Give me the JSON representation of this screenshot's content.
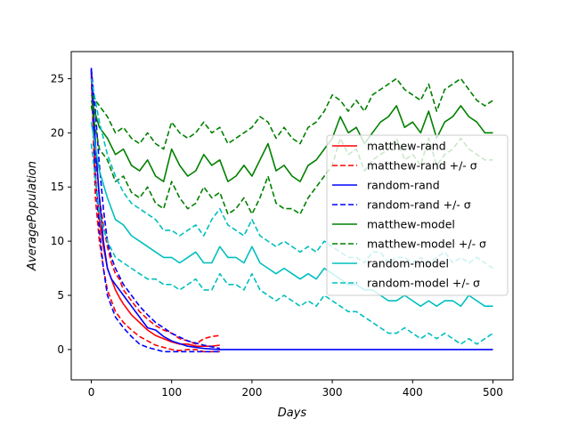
{
  "chart_data": {
    "type": "line",
    "xlabel": "Days",
    "ylabel": "AveragePopulation",
    "xlim": [
      -25,
      525
    ],
    "ylim": [
      -2.8,
      27.5
    ],
    "xticks": [
      0,
      100,
      200,
      300,
      400,
      500
    ],
    "yticks": [
      0,
      5,
      10,
      15,
      20,
      25
    ],
    "grid": false,
    "legend_position": "center-right",
    "series": [
      {
        "name": "matthew-rand",
        "color": "#ff0000",
        "dash": "solid",
        "x": [
          0,
          5,
          10,
          15,
          20,
          25,
          30,
          35,
          40,
          50,
          60,
          70,
          80,
          90,
          100,
          110,
          120,
          130,
          140,
          150,
          160
        ],
        "y": [
          25.5,
          16,
          12,
          9.5,
          7.5,
          6.5,
          5.5,
          4.8,
          4.2,
          3.2,
          2.5,
          1.8,
          1.3,
          1.0,
          0.7,
          0.5,
          0.5,
          0.3,
          0.3,
          0.3,
          0.4
        ]
      },
      {
        "name": "matthew-rand +/- σ",
        "color": "#ff0000",
        "dash": "dashed",
        "x": [
          0,
          5,
          10,
          15,
          20,
          25,
          30,
          35,
          40,
          50,
          60,
          70,
          80,
          90,
          100,
          110,
          120,
          130,
          140,
          150,
          160
        ],
        "y": [
          25.8,
          18,
          14,
          11.5,
          9.5,
          8.0,
          7.0,
          6.5,
          5.5,
          4.5,
          3.5,
          2.8,
          2.2,
          1.8,
          1.5,
          1.0,
          0.8,
          0.5,
          1.0,
          1.2,
          1.3
        ]
      },
      {
        "name": "matthew-rand +/- σ",
        "color": "#ff0000",
        "dash": "dashed",
        "x": [
          0,
          5,
          10,
          15,
          20,
          25,
          30,
          35,
          40,
          50,
          60,
          70,
          80,
          90,
          100,
          110,
          120,
          130,
          140,
          150,
          160
        ],
        "y": [
          25.2,
          14,
          10,
          7.5,
          5.5,
          4.5,
          3.5,
          3.0,
          2.5,
          1.8,
          1.2,
          0.8,
          0.4,
          0.2,
          0.0,
          -0.1,
          0.0,
          0.0,
          -0.2,
          -0.2,
          -0.2
        ]
      },
      {
        "name": "random-rand",
        "color": "#0000ff",
        "dash": "solid",
        "x": [
          0,
          5,
          10,
          15,
          20,
          25,
          30,
          40,
          50,
          60,
          70,
          80,
          90,
          100,
          120,
          140,
          160,
          200,
          300,
          400,
          500
        ],
        "y": [
          26.0,
          19,
          14,
          10,
          7.5,
          6.5,
          6.0,
          5.0,
          4.0,
          3.0,
          2.0,
          1.8,
          1.2,
          0.8,
          0.3,
          0.1,
          0,
          0,
          0,
          0,
          0
        ]
      },
      {
        "name": "random-rand +/- σ",
        "color": "#0000ff",
        "dash": "dashed",
        "x": [
          0,
          5,
          10,
          15,
          20,
          25,
          30,
          40,
          50,
          60,
          70,
          80,
          90,
          100,
          120,
          140,
          160
        ],
        "y": [
          25.9,
          22,
          17,
          13,
          10,
          8.5,
          7.5,
          6.0,
          5.0,
          4.0,
          3.2,
          2.5,
          2.0,
          1.5,
          0.8,
          0.4,
          0.1
        ]
      },
      {
        "name": "random-rand +/- σ",
        "color": "#0000ff",
        "dash": "dashed",
        "x": [
          0,
          5,
          10,
          15,
          20,
          25,
          30,
          40,
          50,
          60,
          70,
          80,
          90,
          100,
          120,
          140,
          160
        ],
        "y": [
          25.8,
          16,
          11,
          7.5,
          5.0,
          4.0,
          3.0,
          2.0,
          1.2,
          0.5,
          0.2,
          0.0,
          -0.2,
          -0.2,
          -0.2,
          -0.2,
          -0.2
        ]
      },
      {
        "name": "matthew-model",
        "color": "#008000",
        "dash": "solid",
        "x": [
          0,
          10,
          20,
          30,
          40,
          50,
          60,
          70,
          80,
          90,
          100,
          110,
          120,
          130,
          140,
          150,
          160,
          170,
          180,
          190,
          200,
          210,
          220,
          230,
          240,
          250,
          260,
          270,
          280,
          290,
          300,
          310,
          320,
          330,
          340,
          350,
          360,
          370,
          380,
          390,
          400,
          410,
          420,
          430,
          440,
          450,
          460,
          470,
          480,
          490,
          500
        ],
        "y": [
          23,
          20.5,
          19.5,
          18,
          18.5,
          17,
          16.5,
          17.5,
          16,
          15.5,
          18.5,
          17,
          16,
          16.5,
          18,
          17,
          17.5,
          15.5,
          16,
          17,
          16,
          17.5,
          19,
          16.5,
          17,
          16,
          15.5,
          17,
          17.5,
          18.5,
          19.5,
          21.5,
          20,
          20.5,
          19,
          20,
          21,
          21.5,
          22.5,
          20.5,
          21,
          20,
          22,
          19.5,
          21,
          21.5,
          22.5,
          21.5,
          21,
          20,
          20
        ]
      },
      {
        "name": "matthew-model +/- σ",
        "color": "#008000",
        "dash": "dashed",
        "x": [
          0,
          10,
          20,
          30,
          40,
          50,
          60,
          70,
          80,
          90,
          100,
          110,
          120,
          130,
          140,
          150,
          160,
          170,
          180,
          190,
          200,
          210,
          220,
          230,
          240,
          250,
          260,
          270,
          280,
          290,
          300,
          310,
          320,
          330,
          340,
          350,
          360,
          370,
          380,
          390,
          400,
          410,
          420,
          430,
          440,
          450,
          460,
          470,
          480,
          490,
          500
        ],
        "y": [
          23.5,
          22.5,
          21.5,
          20,
          20.5,
          19.5,
          19,
          20,
          19,
          18.5,
          21,
          20,
          19.5,
          20,
          21,
          20,
          20.5,
          19,
          19.5,
          20,
          20.5,
          21.5,
          21,
          19.5,
          20.5,
          19.5,
          19,
          20.5,
          21,
          22,
          23.5,
          23,
          22,
          23,
          22,
          23.5,
          24,
          24.5,
          25,
          24,
          23.5,
          23,
          24.5,
          22,
          24,
          24.5,
          25,
          24,
          23,
          22.5,
          23
        ]
      },
      {
        "name": "matthew-model +/- σ",
        "color": "#008000",
        "dash": "dashed",
        "x": [
          0,
          10,
          20,
          30,
          40,
          50,
          60,
          70,
          80,
          90,
          100,
          110,
          120,
          130,
          140,
          150,
          160,
          170,
          180,
          190,
          200,
          210,
          220,
          230,
          240,
          250,
          260,
          270,
          280,
          290,
          300,
          310,
          320,
          330,
          340,
          350,
          360,
          370,
          380,
          390,
          400,
          410,
          420,
          430,
          440,
          450,
          460,
          470,
          480,
          490,
          500
        ],
        "y": [
          22.5,
          18.5,
          17.5,
          15.5,
          16,
          14.5,
          14,
          15,
          13.5,
          13,
          15.5,
          14,
          13,
          13.5,
          15,
          14,
          14.5,
          12.5,
          13,
          14,
          12.5,
          14,
          16,
          13.5,
          13,
          13,
          12.5,
          14,
          15,
          16,
          17,
          19.5,
          18,
          18.5,
          16.5,
          17.5,
          18,
          18.5,
          19.5,
          17.5,
          18,
          17,
          19.5,
          17,
          18,
          18.5,
          19.5,
          18.5,
          18,
          17.5,
          17.5
        ]
      },
      {
        "name": "random-model",
        "color": "#00bfbf",
        "dash": "solid",
        "x": [
          0,
          10,
          20,
          30,
          40,
          50,
          60,
          70,
          80,
          90,
          100,
          110,
          120,
          130,
          140,
          150,
          160,
          170,
          180,
          190,
          200,
          210,
          220,
          230,
          240,
          250,
          260,
          270,
          280,
          290,
          300,
          310,
          320,
          330,
          340,
          350,
          360,
          370,
          380,
          390,
          400,
          410,
          420,
          430,
          440,
          450,
          460,
          470,
          480,
          490,
          500
        ],
        "y": [
          21,
          16.5,
          14,
          12,
          11.5,
          10.5,
          10,
          9.5,
          9,
          8.5,
          8.5,
          8,
          8.5,
          9,
          8,
          8,
          9.5,
          8.5,
          8.5,
          8,
          9.5,
          8,
          7.5,
          7,
          7.5,
          7,
          6.5,
          7,
          6.5,
          7.5,
          7,
          6.5,
          6,
          6,
          5.5,
          5.5,
          5,
          4.5,
          4.5,
          5,
          4.5,
          4,
          4.5,
          4,
          4.5,
          4.5,
          4,
          5,
          4.5,
          4,
          4
        ]
      },
      {
        "name": "random-model +/- σ",
        "color": "#00bfbf",
        "dash": "dashed",
        "x": [
          0,
          10,
          20,
          30,
          40,
          50,
          60,
          70,
          80,
          90,
          100,
          110,
          120,
          130,
          140,
          150,
          160,
          170,
          180,
          190,
          200,
          210,
          220,
          230,
          240,
          250,
          260,
          270,
          280,
          290,
          300,
          310,
          320,
          330,
          340,
          350,
          360,
          370,
          380,
          390,
          400,
          410,
          420,
          430,
          440,
          450,
          460,
          470,
          480,
          490,
          500
        ],
        "y": [
          25,
          21,
          18,
          16,
          14.5,
          13.5,
          13,
          12.5,
          12,
          11,
          11,
          10.5,
          11,
          11.5,
          10.5,
          12,
          13,
          11.5,
          11,
          10.5,
          12,
          10.5,
          10,
          9.5,
          10,
          9.5,
          9,
          9.5,
          9,
          10,
          9.5,
          9,
          8.5,
          8.5,
          8,
          9,
          9,
          8,
          8.5,
          8.5,
          8,
          8.5,
          8,
          8.5,
          9,
          8,
          8.5,
          8,
          8.5,
          8,
          7.5
        ]
      },
      {
        "name": "random-model +/- σ",
        "color": "#00bfbf",
        "dash": "dashed",
        "x": [
          0,
          10,
          20,
          30,
          40,
          50,
          60,
          70,
          80,
          90,
          100,
          110,
          120,
          130,
          140,
          150,
          160,
          170,
          180,
          190,
          200,
          210,
          220,
          230,
          240,
          250,
          260,
          270,
          280,
          290,
          300,
          310,
          320,
          330,
          340,
          350,
          360,
          370,
          380,
          390,
          400,
          410,
          420,
          430,
          440,
          450,
          460,
          470,
          480,
          490,
          500
        ],
        "y": [
          19,
          12.5,
          10,
          8.5,
          8,
          7.5,
          7,
          6.5,
          6.5,
          6,
          6,
          5.5,
          6,
          6.5,
          5.5,
          5.5,
          7,
          6,
          6,
          5.5,
          7,
          5.5,
          5,
          4.5,
          5,
          4.5,
          4,
          4.5,
          4,
          5,
          4.5,
          4,
          3.5,
          3.5,
          3,
          2.5,
          2,
          1.5,
          1.5,
          2,
          1.5,
          1,
          1.5,
          1,
          1.5,
          1,
          0.5,
          1,
          0.5,
          1,
          1.5
        ]
      }
    ],
    "legend": [
      {
        "label": "matthew-rand",
        "color": "#ff0000",
        "dash": "solid"
      },
      {
        "label": "matthew-rand +/- σ",
        "color": "#ff0000",
        "dash": "dashed"
      },
      {
        "label": "random-rand",
        "color": "#0000ff",
        "dash": "solid"
      },
      {
        "label": "random-rand +/- σ",
        "color": "#0000ff",
        "dash": "dashed"
      },
      {
        "label": "matthew-model",
        "color": "#008000",
        "dash": "solid"
      },
      {
        "label": "matthew-model +/- σ",
        "color": "#008000",
        "dash": "dashed"
      },
      {
        "label": "random-model",
        "color": "#00bfbf",
        "dash": "solid"
      },
      {
        "label": "random-model +/- σ",
        "color": "#00bfbf",
        "dash": "dashed"
      }
    ]
  }
}
